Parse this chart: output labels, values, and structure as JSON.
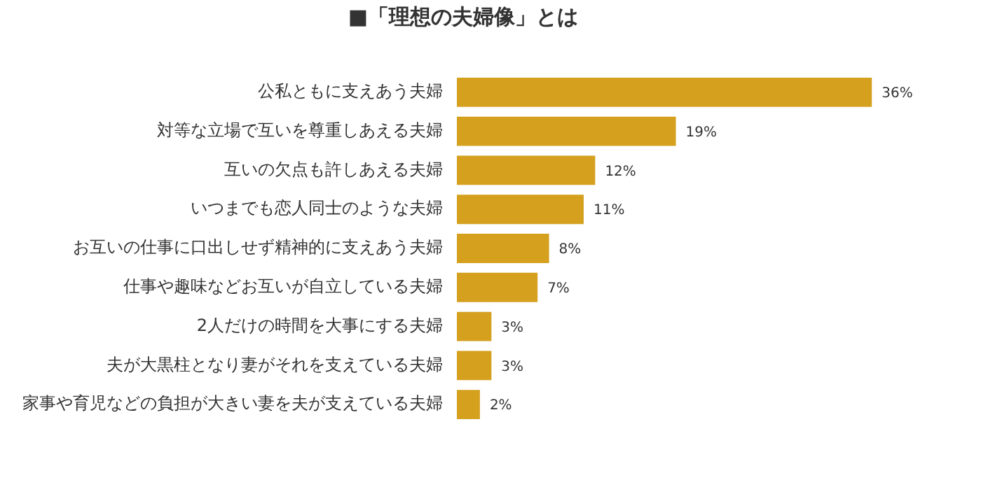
{
  "chart_data": {
    "type": "bar",
    "orientation": "horizontal",
    "title": "■「理想の夫婦像」とは",
    "categories": [
      "公私ともに支えあう夫婦",
      "対等な立場で互いを尊重しあえる夫婦",
      "互いの欠点も許しあえる夫婦",
      "いつまでも恋人同士のような夫婦",
      "お互いの仕事に口出しせず精神的に支えあう夫婦",
      "仕事や趣味などお互いが自立している夫婦",
      "2人だけの時間を大事にする夫婦",
      "夫が大黒柱となり妻がそれを支えている夫婦",
      "家事や育児などの負担が大きい妻を夫が支えている夫婦"
    ],
    "values": [
      36,
      19,
      12,
      11,
      8,
      7,
      3,
      3,
      2
    ],
    "value_labels": [
      "36%",
      "19%",
      "12%",
      "11%",
      "8%",
      "7%",
      "3%",
      "3%",
      "2%"
    ],
    "color": "#d4a01e",
    "tick_labels": "y"
  }
}
